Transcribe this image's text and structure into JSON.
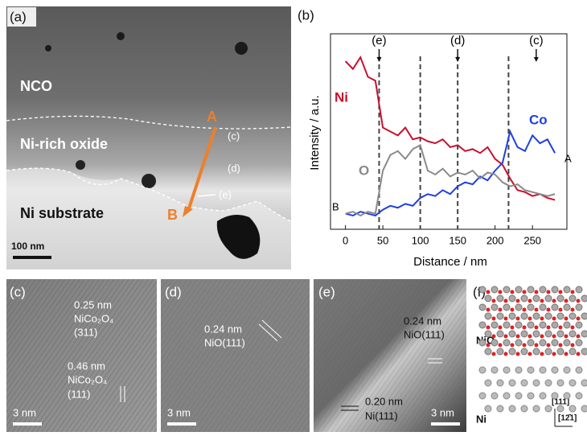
{
  "panel_a": {
    "label": "(a)",
    "regions": [
      "NCO",
      "Ni-rich oxide",
      "Ni substrate"
    ],
    "point_a": "A",
    "point_b": "B",
    "marks": [
      "(c)",
      "(d)",
      "(e)"
    ],
    "scale_bar": "100 nm"
  },
  "chart_data": {
    "type": "line",
    "panel_label": "(b)",
    "x_label": "Distance / nm",
    "y_label": "Intensity / a.u.",
    "x": [
      0,
      10,
      20,
      30,
      40,
      50,
      60,
      70,
      80,
      90,
      100,
      110,
      120,
      130,
      140,
      150,
      160,
      170,
      180,
      190,
      200,
      210,
      220,
      230,
      240,
      250,
      260,
      270,
      280
    ],
    "series": [
      {
        "name": "Ni",
        "color": "#c8102e",
        "values": [
          86,
          82,
          88,
          78,
          76,
          52,
          50,
          48,
          52,
          46,
          47,
          45,
          44,
          46,
          42,
          43,
          40,
          41,
          39,
          42,
          36,
          33,
          26,
          20,
          19,
          17,
          18,
          16,
          15
        ]
      },
      {
        "name": "Co",
        "color": "#1f3fe0",
        "values": [
          8,
          7,
          9,
          8,
          7,
          10,
          12,
          11,
          13,
          12,
          16,
          18,
          17,
          20,
          18,
          22,
          24,
          23,
          27,
          25,
          30,
          34,
          50,
          42,
          40,
          48,
          44,
          46,
          39
        ]
      },
      {
        "name": "O",
        "color": "#8a8a8a",
        "values": [
          8,
          9,
          7,
          9,
          8,
          30,
          38,
          40,
          36,
          41,
          43,
          30,
          28,
          31,
          27,
          29,
          28,
          30,
          26,
          29,
          28,
          24,
          22,
          23,
          20,
          19,
          18,
          17,
          18
        ]
      }
    ],
    "xlim": [
      -20,
      296
    ],
    "xticks": [
      0,
      50,
      100,
      150,
      200,
      250
    ],
    "ylim": [
      0,
      100
    ],
    "vlines": [
      45,
      100,
      150,
      218
    ],
    "markers": [
      {
        "label": "(e)",
        "x": 45
      },
      {
        "label": "(d)",
        "x": 150
      },
      {
        "label": "(c)",
        "x": 255
      }
    ],
    "annotations": [
      "A",
      "B"
    ]
  },
  "panel_c": {
    "label": "(c)",
    "spacing_1": "0.25 nm",
    "phase_1": "NiCo₂O₄",
    "plane_1": "(311)",
    "spacing_2": "0.46 nm",
    "phase_2": "NiCo₂O₄",
    "plane_2": "(111)",
    "scale_bar": "3 nm"
  },
  "panel_d": {
    "label": "(d)",
    "spacing": "0.24 nm",
    "plane": "NiO(111)",
    "scale_bar": "3 nm"
  },
  "panel_e": {
    "label": "(e)",
    "spacing_1": "0.24 nm",
    "plane_1": "NiO(111)",
    "spacing_2": "0.20 nm",
    "plane_2": "Ni(111)",
    "scale_bar": "3 nm"
  },
  "panel_f": {
    "label": "(f)",
    "top": "NiO",
    "bottom": "Ni",
    "dir_1": "[111]",
    "dir_2": "[12̄1]"
  }
}
